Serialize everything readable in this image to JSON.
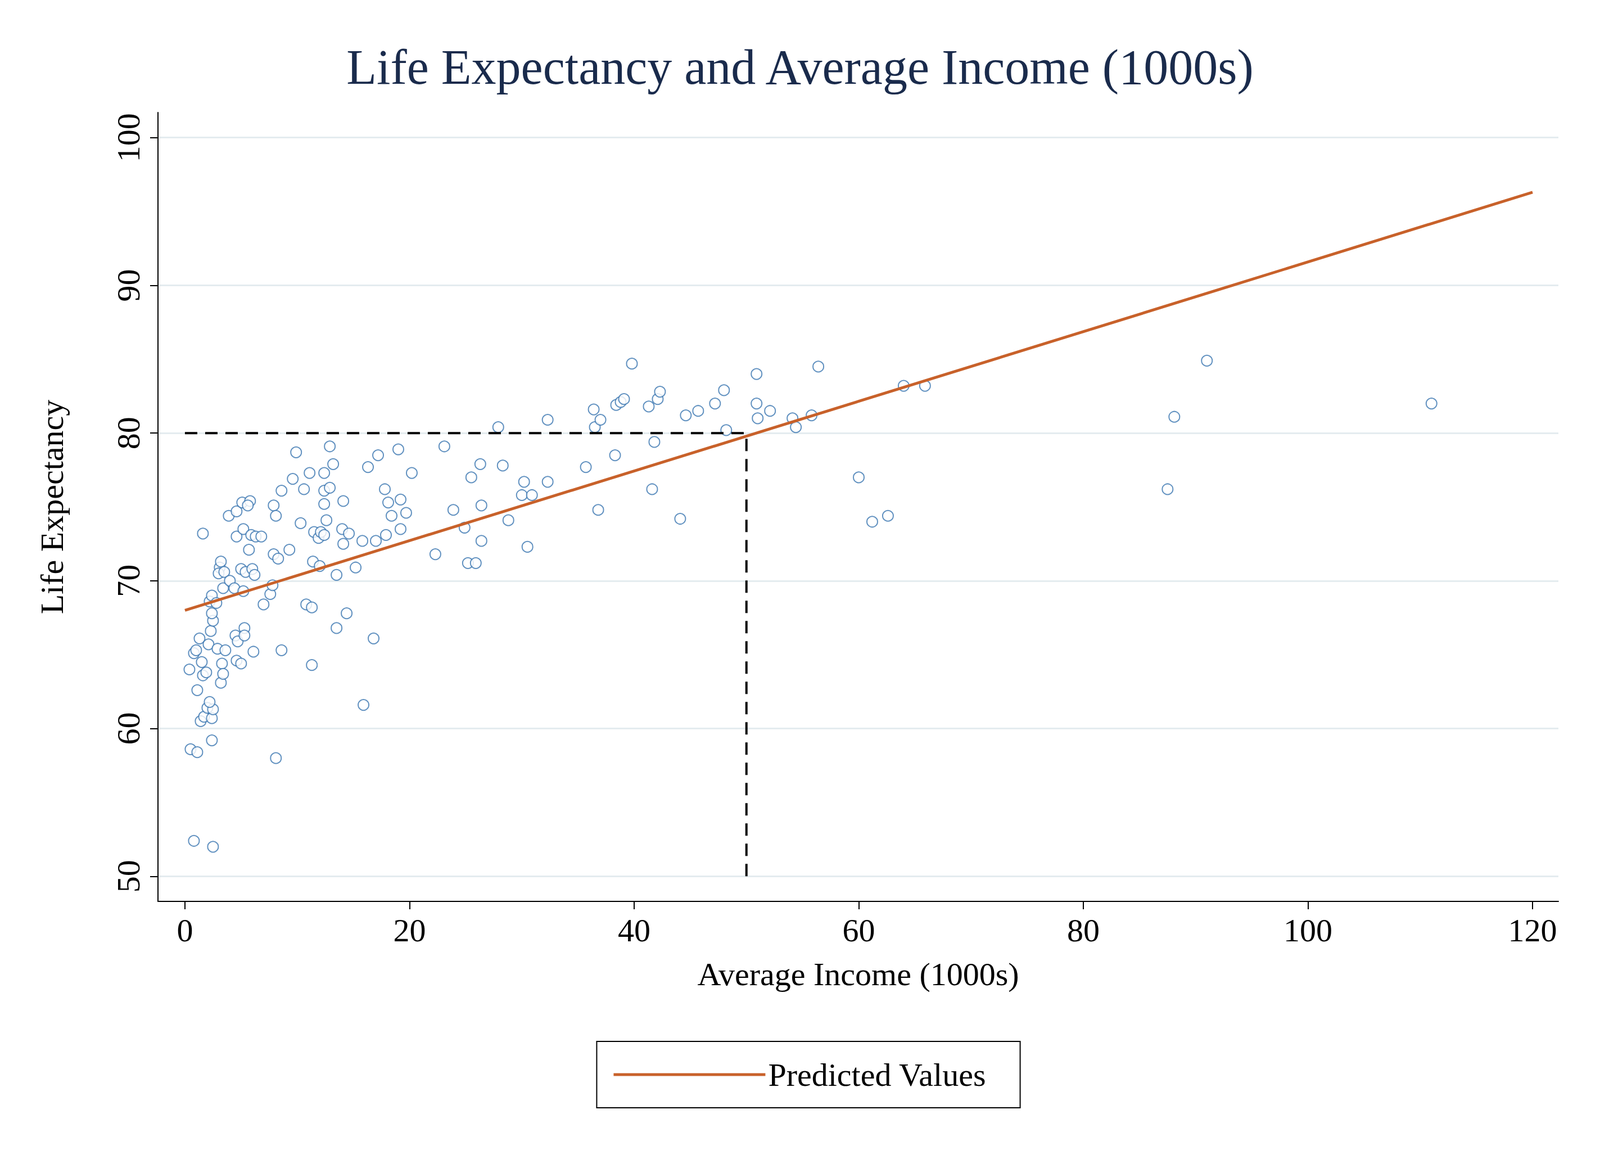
{
  "chart_data": {
    "type": "scatter",
    "title": "Life Expectancy and Average Income (1000s)",
    "x_label": "Average Income (1000s)",
    "y_label": "Life Expectancy",
    "xlim": [
      -2.4,
      122.3
    ],
    "xticks": [
      0,
      20,
      40,
      60,
      80,
      100,
      120
    ],
    "ylim": [
      48.3,
      101.7
    ],
    "yticks": [
      50,
      60,
      70,
      80,
      90,
      100
    ],
    "grid": "y",
    "legend": "bottom",
    "series": [
      {
        "type": "scatter",
        "color": "#3a75b0",
        "marker": "circle-open",
        "x": [
          0.4,
          0.5,
          0.8,
          1.1,
          2.5,
          2.4,
          0.8,
          1.0,
          1.3,
          1.1,
          1.6,
          1.4,
          1.7,
          2.0,
          2.4,
          2.5,
          2.2,
          1.9,
          1.5,
          2.1,
          2.3,
          2.5,
          2.4,
          2.2,
          2.4,
          2.8,
          1.6,
          3.1,
          3.0,
          3.2,
          3.4,
          3.5,
          2.9,
          3.3,
          3.2,
          3.4,
          3.6,
          4.0,
          4.4,
          4.5,
          4.7,
          4.6,
          5.0,
          3.9,
          4.6,
          5.1,
          5.8,
          5.6,
          4.6,
          5.2,
          5.9,
          6.3,
          6.8,
          5.7,
          5.0,
          5.4,
          6.0,
          6.2,
          5.2,
          5.3,
          5.3,
          6.1,
          7.0,
          7.6,
          7.8,
          7.9,
          8.3,
          7.9,
          8.1,
          8.1,
          8.6,
          8.6,
          9.3,
          9.6,
          9.9,
          10.3,
          10.6,
          10.8,
          11.3,
          11.3,
          11.4,
          11.1,
          11.5,
          12.0,
          11.9,
          12.1,
          12.4,
          12.4,
          12.4,
          12.6,
          12.4,
          12.9,
          13.2,
          12.9,
          13.5,
          13.5,
          14.1,
          14.0,
          14.1,
          14.4,
          14.6,
          15.2,
          15.8,
          15.9,
          16.3,
          16.8,
          17.2,
          17.0,
          17.8,
          17.9,
          18.1,
          18.4,
          19.0,
          19.2,
          19.2,
          19.7,
          20.2,
          22.3,
          23.1,
          23.9,
          24.9,
          25.2,
          25.5,
          25.9,
          26.3,
          26.4,
          26.4,
          27.9,
          28.3,
          28.8,
          30.2,
          30.0,
          30.9,
          30.5,
          32.3,
          32.3,
          35.7,
          36.4,
          36.5,
          37.0,
          36.8,
          38.3,
          38.4,
          38.8,
          39.1,
          39.8,
          41.3,
          42.1,
          42.3,
          41.8,
          41.6,
          44.1,
          44.6,
          45.7,
          47.2,
          48.0,
          48.2,
          50.9,
          50.9,
          51.0,
          52.1,
          54.1,
          54.4,
          55.8,
          56.4,
          60.0,
          61.2,
          62.6,
          64.0,
          65.9,
          87.5,
          88.1,
          91.0,
          111.0
        ],
        "values": [
          64.0,
          58.6,
          52.4,
          58.4,
          52.0,
          59.2,
          65.1,
          65.3,
          66.1,
          62.6,
          63.6,
          60.5,
          60.8,
          61.4,
          60.7,
          61.3,
          61.8,
          63.8,
          64.5,
          65.7,
          66.6,
          67.3,
          67.8,
          68.6,
          69.0,
          68.5,
          73.2,
          70.9,
          70.5,
          71.3,
          69.5,
          70.6,
          65.4,
          64.4,
          63.1,
          63.7,
          65.3,
          70.0,
          69.5,
          66.3,
          65.9,
          64.6,
          64.4,
          74.4,
          74.7,
          75.3,
          75.4,
          75.1,
          73.0,
          73.5,
          73.1,
          73.0,
          73.0,
          72.1,
          70.8,
          70.6,
          70.8,
          70.4,
          69.3,
          66.8,
          66.3,
          65.2,
          68.4,
          69.1,
          69.7,
          71.8,
          71.5,
          75.1,
          74.4,
          58.0,
          65.3,
          76.1,
          72.1,
          76.9,
          78.7,
          73.9,
          76.2,
          68.4,
          68.2,
          64.3,
          71.3,
          77.3,
          73.3,
          71.0,
          72.9,
          73.3,
          77.3,
          76.1,
          75.2,
          74.1,
          73.1,
          79.1,
          77.9,
          76.3,
          70.4,
          66.8,
          75.4,
          73.5,
          72.5,
          67.8,
          73.2,
          70.9,
          72.7,
          61.6,
          77.7,
          66.1,
          78.5,
          72.7,
          76.2,
          73.1,
          75.3,
          74.4,
          78.9,
          75.5,
          73.5,
          74.6,
          77.3,
          71.8,
          79.1,
          74.8,
          73.6,
          71.2,
          77.0,
          71.2,
          77.9,
          75.1,
          72.7,
          80.4,
          77.8,
          74.1,
          76.7,
          75.8,
          75.8,
          72.3,
          80.9,
          76.7,
          77.7,
          81.6,
          80.4,
          80.9,
          74.8,
          78.5,
          81.9,
          82.1,
          82.3,
          84.7,
          81.8,
          82.3,
          82.8,
          79.4,
          76.2,
          74.2,
          81.2,
          81.5,
          82.0,
          82.9,
          80.2,
          84.0,
          82.0,
          81.0,
          81.5,
          81.0,
          80.4,
          81.2,
          84.5,
          77.0,
          74.0,
          74.4,
          83.2,
          83.2,
          76.2,
          81.1,
          84.9,
          82.0
        ]
      },
      {
        "name": "Predicted Values",
        "type": "line",
        "color": "#c8612a",
        "line_style": "solid",
        "x": [
          0,
          120
        ],
        "values": [
          68.0,
          96.3
        ]
      },
      {
        "type": "line",
        "color": "#000000",
        "line_style": "dashed",
        "x": [
          0,
          50
        ],
        "values": [
          80,
          80
        ]
      },
      {
        "type": "line",
        "color": "#000000",
        "line_style": "dashed",
        "x": [
          50,
          50
        ],
        "values": [
          50,
          80
        ]
      }
    ]
  }
}
